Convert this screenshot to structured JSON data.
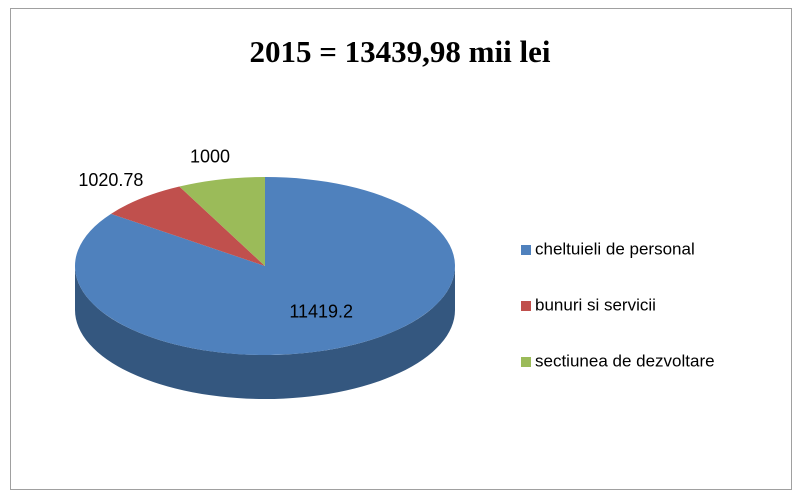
{
  "chart_data": {
    "type": "pie",
    "title": "2015 = 13439,98 mii lei",
    "categories": [
      "cheltuieli de personal",
      "bunuri si servicii",
      "sectiunea de dezvoltare"
    ],
    "values": [
      11419.2,
      1020.78,
      1000
    ],
    "colors": [
      "#4f81bd",
      "#c0504d",
      "#9bbb59"
    ],
    "side_colors": [
      "#34577f",
      "#8a3432",
      "#6d8a3b"
    ],
    "legend": "right"
  }
}
